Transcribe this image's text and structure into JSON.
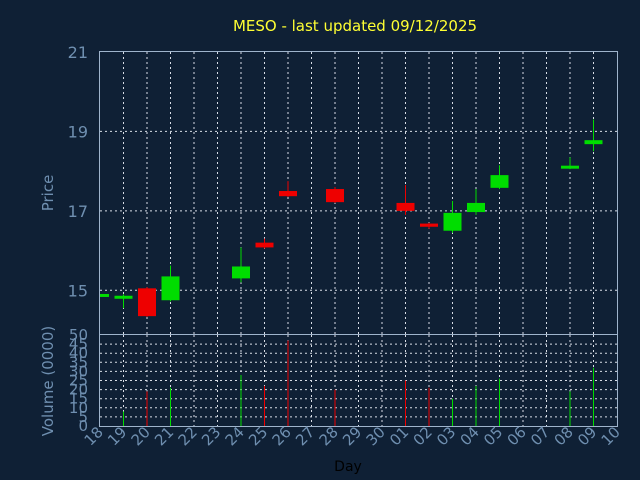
{
  "title": "MESO - last updated 09/12/2025",
  "colors": {
    "background": "#0f2035",
    "title": "#ffff33",
    "axis_text": "#6f8fb0",
    "up": "#00dd00",
    "down": "#ee0000",
    "frame": "#9fb4cc",
    "grid": "#d8dde6"
  },
  "chart_data": [
    {
      "type": "candlestick",
      "ylabel": "Price",
      "ylim": [
        13.9,
        21
      ],
      "yticks": [
        15,
        17,
        19,
        21
      ],
      "grid": true,
      "categories": [
        "18",
        "19",
        "20",
        "21",
        "22",
        "23",
        "24",
        "25",
        "26",
        "27",
        "28",
        "29",
        "30",
        "01",
        "02",
        "03",
        "04",
        "05",
        "06",
        "07",
        "08",
        "09",
        "10"
      ],
      "candles": [
        {
          "day": "18",
          "open": 14.87,
          "high": 14.87,
          "low": 14.87,
          "close": 14.87
        },
        {
          "day": "19",
          "open": 14.8,
          "high": 14.9,
          "low": 14.55,
          "close": 14.85
        },
        {
          "day": "20",
          "open": 15.05,
          "high": 15.08,
          "low": 14.33,
          "close": 14.35
        },
        {
          "day": "21",
          "open": 14.75,
          "high": 15.62,
          "low": 14.72,
          "close": 15.35
        },
        {
          "day": "24",
          "open": 15.3,
          "high": 16.08,
          "low": 15.2,
          "close": 15.6
        },
        {
          "day": "25",
          "open": 16.2,
          "high": 16.3,
          "low": 16.05,
          "close": 16.08
        },
        {
          "day": "26",
          "open": 17.5,
          "high": 17.75,
          "low": 17.35,
          "close": 17.37
        },
        {
          "day": "28",
          "open": 17.55,
          "high": 17.6,
          "low": 17.2,
          "close": 17.22
        },
        {
          "day": "01",
          "open": 17.2,
          "high": 17.65,
          "low": 16.9,
          "close": 17.0
        },
        {
          "day": "02",
          "open": 16.68,
          "high": 16.7,
          "low": 16.55,
          "close": 16.6
        },
        {
          "day": "03",
          "open": 16.5,
          "high": 17.25,
          "low": 16.45,
          "close": 16.95
        },
        {
          "day": "04",
          "open": 16.97,
          "high": 17.55,
          "low": 16.9,
          "close": 17.2
        },
        {
          "day": "05",
          "open": 17.58,
          "high": 18.15,
          "low": 17.55,
          "close": 17.9
        },
        {
          "day": "08",
          "open": 18.08,
          "high": 18.35,
          "low": 18.05,
          "close": 18.12
        },
        {
          "day": "09",
          "open": 18.68,
          "high": 19.3,
          "low": 18.5,
          "close": 18.78
        }
      ]
    },
    {
      "type": "bar",
      "ylabel": "Volume (0000)",
      "xlabel": "Day",
      "ylim": [
        0,
        50
      ],
      "yticks": [
        0,
        5,
        10,
        15,
        20,
        25,
        30,
        35,
        40,
        45,
        50
      ],
      "grid": true,
      "categories": [
        "18",
        "19",
        "20",
        "21",
        "22",
        "23",
        "24",
        "25",
        "26",
        "27",
        "28",
        "29",
        "30",
        "01",
        "02",
        "03",
        "04",
        "05",
        "06",
        "07",
        "08",
        "09",
        "10"
      ],
      "bars": [
        {
          "day": "19",
          "value": 8,
          "direction": "up"
        },
        {
          "day": "20",
          "value": 19,
          "direction": "down"
        },
        {
          "day": "21",
          "value": 21,
          "direction": "up"
        },
        {
          "day": "24",
          "value": 28,
          "direction": "up"
        },
        {
          "day": "25",
          "value": 22,
          "direction": "down"
        },
        {
          "day": "26",
          "value": 47,
          "direction": "down"
        },
        {
          "day": "28",
          "value": 20,
          "direction": "down"
        },
        {
          "day": "01",
          "value": 25,
          "direction": "down"
        },
        {
          "day": "02",
          "value": 21,
          "direction": "down"
        },
        {
          "day": "03",
          "value": 15,
          "direction": "up"
        },
        {
          "day": "04",
          "value": 22,
          "direction": "up"
        },
        {
          "day": "05",
          "value": 26,
          "direction": "up"
        },
        {
          "day": "08",
          "value": 19,
          "direction": "up"
        },
        {
          "day": "09",
          "value": 32,
          "direction": "up"
        }
      ]
    }
  ]
}
